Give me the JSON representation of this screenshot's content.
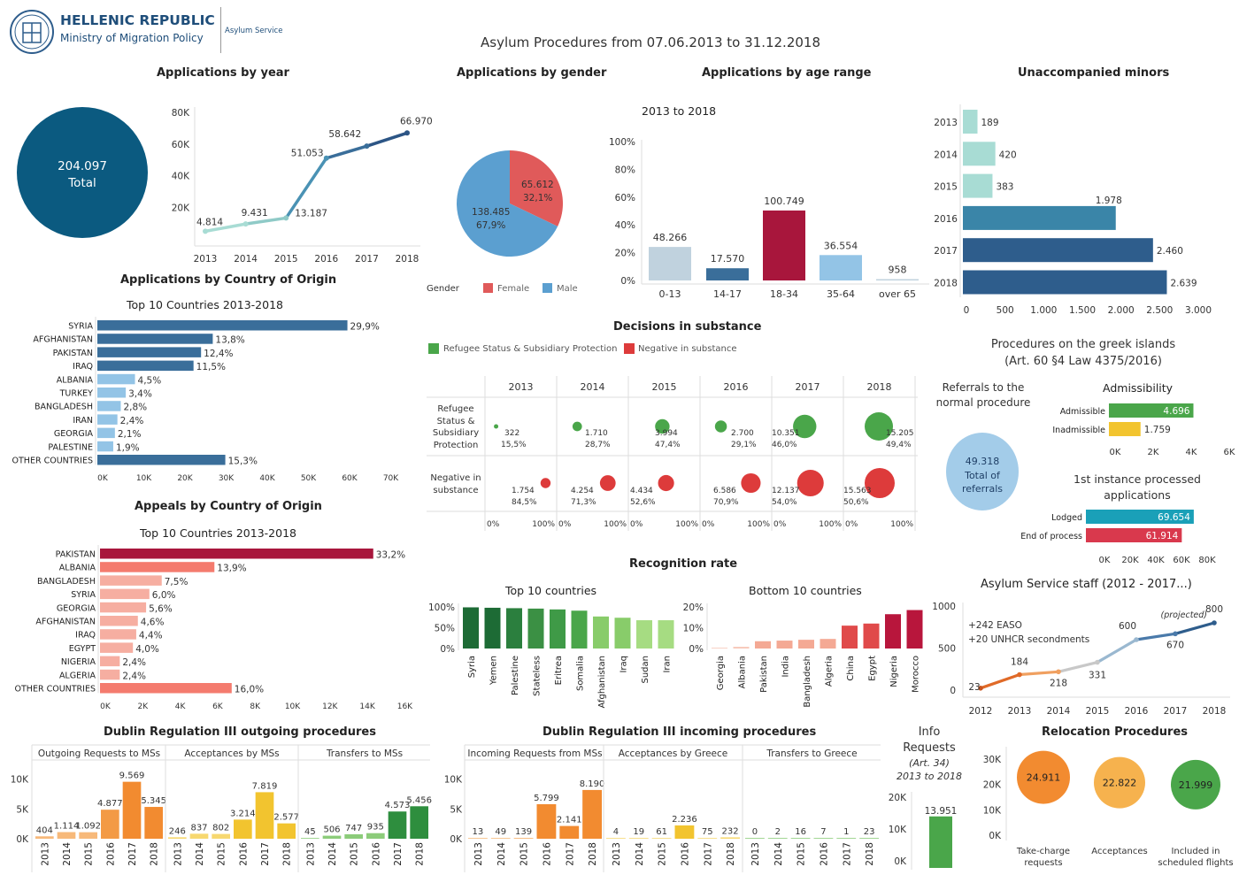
{
  "header": {
    "org": "HELLENIC REPUBLIC",
    "ministry": "Ministry of Migration Policy",
    "service": "Asylum Service",
    "title": "Asylum Procedures from 07.06.2013 to 31.12.2018"
  },
  "colors": {
    "teal_dark": "#0b5a80",
    "light_teal": "#a8dcd4",
    "steel": "#3a6e9a",
    "red_bar": "#a8163c",
    "female": "#e05a5a",
    "male": "#5b9fd0",
    "green": "#4aa64a",
    "red": "#dd3b3b",
    "yellow": "#f2c42f",
    "orange": "#f28b30",
    "blue_light": "#93c4e6",
    "salmon": "#f47b6e"
  },
  "apps_year": {
    "title": "Applications by year",
    "total_value": "204.097",
    "total_label": "Total",
    "y_ticks": [
      "80K",
      "60K",
      "40K",
      "20K"
    ],
    "years": [
      "2013",
      "2014",
      "2015",
      "2016",
      "2017",
      "2018"
    ],
    "values": [
      4814,
      9431,
      13187,
      51053,
      58642,
      66970
    ],
    "labels": [
      "4.814",
      "9.431",
      "13.187",
      "51.053",
      "58.642",
      "66.970"
    ]
  },
  "gender": {
    "title": "Applications by gender",
    "female_value": "65.612",
    "female_pct": "32,1%",
    "male_value": "138.485",
    "male_pct": "67,9%",
    "legend_title": "Gender",
    "female_label": "Female",
    "male_label": "Male",
    "female_share": 0.321
  },
  "age": {
    "title": "Applications by age range",
    "subtitle": "2013 to 2018",
    "y_ticks": [
      "100%",
      "80%",
      "60%",
      "40%",
      "20%",
      "0%"
    ],
    "categories": [
      "0-13",
      "14-17",
      "18-34",
      "35-64",
      "over 65"
    ],
    "values": [
      48266,
      17570,
      100749,
      36554,
      958
    ],
    "labels": [
      "48.266",
      "17.570",
      "100.749",
      "36.554",
      "958"
    ]
  },
  "minors": {
    "title": "Unaccompanied minors",
    "years": [
      "2013",
      "2014",
      "2015",
      "2016",
      "2017",
      "2018"
    ],
    "values": [
      189,
      420,
      383,
      1978,
      2460,
      2639
    ],
    "labels": [
      "189",
      "420",
      "383",
      "1.978",
      "2.460",
      "2.639"
    ],
    "x_ticks": [
      "0",
      "500",
      "1.000",
      "1.500",
      "2.000",
      "2.500",
      "3.000"
    ]
  },
  "origin": {
    "title": "Applications by Country of Origin",
    "subtitle": "Top 10 Countries 2013-2018",
    "countries": [
      "SYRIA",
      "AFGHANISTAN",
      "PAKISTAN",
      "IRAQ",
      "ALBANIA",
      "TURKEY",
      "BANGLADESH",
      "IRAN",
      "GEORGIA",
      "PALESTINE",
      "OTHER COUNTRIES"
    ],
    "pcts": [
      29.9,
      13.8,
      12.4,
      11.5,
      4.5,
      3.4,
      2.8,
      2.4,
      2.1,
      1.9,
      15.3
    ],
    "labels": [
      "29,9%",
      "13,8%",
      "12,4%",
      "11,5%",
      "4,5%",
      "3,4%",
      "2,8%",
      "2,4%",
      "2,1%",
      "1,9%",
      "15,3%"
    ],
    "x_ticks": [
      "0K",
      "10K",
      "20K",
      "30K",
      "40K",
      "50K",
      "60K",
      "70K"
    ]
  },
  "appeals": {
    "title": "Appeals by Country of Origin",
    "subtitle": "Top 10 Countries 2013-2018",
    "countries": [
      "PAKISTAN",
      "ALBANIA",
      "BANGLADESH",
      "SYRIA",
      "GEORGIA",
      "AFGHANISTAN",
      "IRAQ",
      "EGYPT",
      "NIGERIA",
      "ALGERIA",
      "OTHER COUNTRIES"
    ],
    "pcts": [
      33.2,
      13.9,
      7.5,
      6.0,
      5.6,
      4.6,
      4.4,
      4.0,
      2.4,
      2.4,
      16.0
    ],
    "labels": [
      "33,2%",
      "13,9%",
      "7,5%",
      "6,0%",
      "5,6%",
      "4,6%",
      "4,4%",
      "4,0%",
      "2,4%",
      "2,4%",
      "16,0%"
    ],
    "x_ticks": [
      "0K",
      "2K",
      "4K",
      "6K",
      "8K",
      "10K",
      "12K",
      "14K",
      "16K"
    ]
  },
  "decisions": {
    "title": "Decisions in substance",
    "legend_pos": "Refugee Status & Subsidiary Protection",
    "legend_neg": "Negative in substance",
    "row_pos": "Refugee Status & Subsidiary Protection",
    "row_neg": "Negative in substance",
    "years": [
      "2013",
      "2014",
      "2015",
      "2016",
      "2017",
      "2018"
    ],
    "pos_values": [
      322,
      1710,
      3994,
      2700,
      10351,
      15205
    ],
    "pos_labels": [
      "322",
      "1.710",
      "3.994",
      "2.700",
      "10.351",
      "15.205"
    ],
    "pos_pcts": [
      15.5,
      28.7,
      47.4,
      29.1,
      46.0,
      49.4
    ],
    "pos_pct_labels": [
      "15,5%",
      "28,7%",
      "47,4%",
      "29,1%",
      "46,0%",
      "49,4%"
    ],
    "neg_values": [
      1754,
      4254,
      4434,
      6586,
      12137,
      15563
    ],
    "neg_labels": [
      "1.754",
      "4.254",
      "4.434",
      "6.586",
      "12.137",
      "15.563"
    ],
    "neg_pcts": [
      84.5,
      71.3,
      52.6,
      70.9,
      54.0,
      50.6
    ],
    "neg_pct_labels": [
      "84,5%",
      "71,3%",
      "52,6%",
      "70,9%",
      "54,0%",
      "50,6%"
    ],
    "axis_min": "0%",
    "axis_max": "100%"
  },
  "islands": {
    "title1": "Procedures on the greek islands",
    "title2": "(Art. 60 §4 Law 4375/2016)",
    "referrals_title": "Referrals to the normal procedure",
    "referrals_value": "49.318",
    "referrals_l1": "Total of",
    "referrals_l2": "referrals",
    "admissibility_title": "Admissibility",
    "adm_labels": [
      "Admissible",
      "Inadmissible"
    ],
    "adm_values": [
      4696,
      1759
    ],
    "adm_value_labels": [
      "4.696",
      "1.759"
    ],
    "adm_ticks": [
      "0K",
      "2K",
      "4K",
      "6K"
    ],
    "first_title1": "1st instance processed",
    "first_title2": "applications",
    "first_labels": [
      "Lodged",
      "End of process"
    ],
    "first_values": [
      69654,
      61914
    ],
    "first_value_labels": [
      "69.654",
      "61.914"
    ],
    "first_ticks": [
      "0K",
      "20K",
      "40K",
      "60K",
      "80K"
    ]
  },
  "recognition": {
    "title": "Recognition rate",
    "top_title": "Top 10 countries",
    "top_countries": [
      "Syria",
      "Yemen",
      "Palestine",
      "Stateless",
      "Eritrea",
      "Somalia",
      "Afghanistan",
      "Iraq",
      "Sudan",
      "Iran"
    ],
    "top_values": [
      99,
      98,
      97,
      96,
      94,
      91,
      77,
      74,
      68,
      68
    ],
    "top_ticks": [
      "100%",
      "50%",
      "0%"
    ],
    "bottom_title": "Bottom 10 countries",
    "bottom_countries": [
      "Georgia",
      "Albania",
      "Pakistan",
      "India",
      "Bangladesh",
      "Algeria",
      "China",
      "Egypt",
      "Nigeria",
      "Morocco"
    ],
    "bottom_values": [
      0.3,
      0.8,
      3.5,
      3.8,
      4.2,
      4.6,
      11.0,
      12.0,
      16.5,
      18.5
    ],
    "bottom_ticks": [
      "20%",
      "10%",
      "0%"
    ]
  },
  "staff": {
    "title": "Asylum Service staff (2012 - 2017...)",
    "years": [
      "2012",
      "2013",
      "2014",
      "2015",
      "2016",
      "2017",
      "2018"
    ],
    "values": [
      23,
      184,
      218,
      331,
      600,
      670,
      800
    ],
    "labels": [
      "23",
      "184",
      "218",
      "331",
      "600",
      "670",
      "800"
    ],
    "y_ticks": [
      "1000",
      "500",
      "0"
    ],
    "note1": "+242 EASO",
    "note2": "+20 UNHCR secondments",
    "projected": "(projected)"
  },
  "dublin_out": {
    "title": "Dublin Regulation III outgoing procedures",
    "panels": [
      "Outgoing Requests to MSs",
      "Acceptances by MSs",
      "Transfers to MSs"
    ],
    "y_ticks": [
      "10K",
      "5K",
      "0K"
    ],
    "years": [
      "2013",
      "2014",
      "2015",
      "2016",
      "2017",
      "2018"
    ],
    "requests": [
      404,
      1114,
      1092,
      4877,
      9569,
      5345
    ],
    "requests_labels": [
      "404",
      "1.114",
      "1.092",
      "4.877",
      "9.569",
      "5.345"
    ],
    "acceptances": [
      246,
      837,
      802,
      3214,
      7819,
      2577
    ],
    "acceptances_labels": [
      "246",
      "837",
      "802",
      "3.214",
      "7.819",
      "2.577"
    ],
    "transfers": [
      45,
      506,
      747,
      935,
      4573,
      5456
    ],
    "transfers_labels": [
      "45",
      "506",
      "747",
      "935",
      "4.573",
      "5.456"
    ]
  },
  "dublin_in": {
    "title": "Dublin Regulation III incoming procedures",
    "panels": [
      "Incoming Requests from MSs",
      "Acceptances by Greece",
      "Transfers to Greece"
    ],
    "y_ticks": [
      "10K",
      "5K",
      "0K"
    ],
    "years": [
      "2013",
      "2014",
      "2015",
      "2016",
      "2017",
      "2018"
    ],
    "requests": [
      13,
      49,
      139,
      5799,
      2141,
      8190
    ],
    "requests_labels": [
      "13",
      "49",
      "139",
      "5.799",
      "2.141",
      "8.190"
    ],
    "acceptances": [
      4,
      19,
      61,
      2236,
      75,
      232
    ],
    "acceptances_labels": [
      "4",
      "19",
      "61",
      "2.236",
      "75",
      "232"
    ],
    "transfers": [
      0,
      2,
      16,
      7,
      1,
      23
    ],
    "transfers_labels": [
      "0",
      "2",
      "16",
      "7",
      "1",
      "23"
    ]
  },
  "info": {
    "title1": "Info",
    "title2": "Requests",
    "title3": "(Art. 34)",
    "title4": "2013 to 2018",
    "y_ticks": [
      "20K",
      "10K",
      "0K"
    ],
    "value": 13951,
    "value_label": "13.951"
  },
  "relocation": {
    "title": "Relocation Procedures",
    "y_ticks": [
      "30K",
      "20K",
      "10K",
      "0K"
    ],
    "values": [
      24911,
      22822,
      21999
    ],
    "value_labels": [
      "24.911",
      "22.822",
      "21.999"
    ],
    "labels_l1": [
      "Take-charge",
      "Acceptances",
      "Included in"
    ],
    "labels_l2": [
      "requests",
      "",
      "scheduled flights"
    ]
  },
  "chart_data": [
    {
      "type": "line",
      "title": "Applications by year",
      "x": [
        "2013",
        "2014",
        "2015",
        "2016",
        "2017",
        "2018"
      ],
      "values": [
        4814,
        9431,
        13187,
        51053,
        58642,
        66970
      ],
      "ylim": [
        0,
        80000
      ]
    },
    {
      "type": "pie",
      "title": "Applications by gender",
      "categories": [
        "Female",
        "Male"
      ],
      "values": [
        65612,
        138485
      ]
    },
    {
      "type": "bar",
      "title": "Applications by age range",
      "categories": [
        "0-13",
        "14-17",
        "18-34",
        "35-64",
        "over 65"
      ],
      "values": [
        48266,
        17570,
        100749,
        36554,
        958
      ]
    },
    {
      "type": "bar",
      "title": "Unaccompanied minors",
      "categories": [
        "2013",
        "2014",
        "2015",
        "2016",
        "2017",
        "2018"
      ],
      "values": [
        189,
        420,
        383,
        1978,
        2460,
        2639
      ],
      "xlim": [
        0,
        3000
      ]
    },
    {
      "type": "bar",
      "title": "Applications by Country of Origin",
      "categories": [
        "SYRIA",
        "AFGHANISTAN",
        "PAKISTAN",
        "IRAQ",
        "ALBANIA",
        "TURKEY",
        "BANGLADESH",
        "IRAN",
        "GEORGIA",
        "PALESTINE",
        "OTHER COUNTRIES"
      ],
      "values": [
        29.9,
        13.8,
        12.4,
        11.5,
        4.5,
        3.4,
        2.8,
        2.4,
        2.1,
        1.9,
        15.3
      ]
    },
    {
      "type": "bar",
      "title": "Appeals by Country of Origin",
      "categories": [
        "PAKISTAN",
        "ALBANIA",
        "BANGLADESH",
        "SYRIA",
        "GEORGIA",
        "AFGHANISTAN",
        "IRAQ",
        "EGYPT",
        "NIGERIA",
        "ALGERIA",
        "OTHER COUNTRIES"
      ],
      "values": [
        33.2,
        13.9,
        7.5,
        6.0,
        5.6,
        4.6,
        4.4,
        4.0,
        2.4,
        2.4,
        16.0
      ]
    },
    {
      "type": "scatter",
      "title": "Decisions in substance",
      "x": [
        "2013",
        "2014",
        "2015",
        "2016",
        "2017",
        "2018"
      ],
      "series": [
        {
          "name": "Refugee Status & Subsidiary Protection",
          "values": [
            322,
            1710,
            3994,
            2700,
            10351,
            15205
          ]
        },
        {
          "name": "Negative in substance",
          "values": [
            1754,
            4254,
            4434,
            6586,
            12137,
            15563
          ]
        }
      ]
    },
    {
      "type": "bar",
      "title": "Recognition rate - Top 10 countries",
      "categories": [
        "Syria",
        "Yemen",
        "Palestine",
        "Stateless",
        "Eritrea",
        "Somalia",
        "Afghanistan",
        "Iraq",
        "Sudan",
        "Iran"
      ],
      "values": [
        99,
        98,
        97,
        96,
        94,
        91,
        77,
        74,
        68,
        68
      ]
    },
    {
      "type": "bar",
      "title": "Recognition rate - Bottom 10 countries",
      "categories": [
        "Georgia",
        "Albania",
        "Pakistan",
        "India",
        "Bangladesh",
        "Algeria",
        "China",
        "Egypt",
        "Nigeria",
        "Morocco"
      ],
      "values": [
        0.3,
        0.8,
        3.5,
        3.8,
        4.2,
        4.6,
        11.0,
        12.0,
        16.5,
        18.5
      ]
    },
    {
      "type": "line",
      "title": "Asylum Service staff (2012 - 2017...)",
      "x": [
        "2012",
        "2013",
        "2014",
        "2015",
        "2016",
        "2017",
        "2018"
      ],
      "values": [
        23,
        184,
        218,
        331,
        600,
        670,
        800
      ]
    },
    {
      "type": "bar",
      "title": "Dublin Regulation III outgoing procedures",
      "categories": [
        "2013",
        "2014",
        "2015",
        "2016",
        "2017",
        "2018"
      ],
      "series": [
        {
          "name": "Outgoing Requests to MSs",
          "values": [
            404,
            1114,
            1092,
            4877,
            9569,
            5345
          ]
        },
        {
          "name": "Acceptances by MSs",
          "values": [
            246,
            837,
            802,
            3214,
            7819,
            2577
          ]
        },
        {
          "name": "Transfers to MSs",
          "values": [
            45,
            506,
            747,
            935,
            4573,
            5456
          ]
        }
      ]
    },
    {
      "type": "bar",
      "title": "Dublin Regulation III incoming procedures",
      "categories": [
        "2013",
        "2014",
        "2015",
        "2016",
        "2017",
        "2018"
      ],
      "series": [
        {
          "name": "Incoming Requests from MSs",
          "values": [
            13,
            49,
            139,
            5799,
            2141,
            8190
          ]
        },
        {
          "name": "Acceptances by Greece",
          "values": [
            4,
            19,
            61,
            2236,
            75,
            232
          ]
        },
        {
          "name": "Transfers to Greece",
          "values": [
            0,
            2,
            16,
            7,
            1,
            23
          ]
        }
      ]
    },
    {
      "type": "bar",
      "title": "Relocation Procedures",
      "categories": [
        "Take-charge requests",
        "Acceptances",
        "Included in scheduled flights"
      ],
      "values": [
        24911,
        22822,
        21999
      ]
    }
  ]
}
